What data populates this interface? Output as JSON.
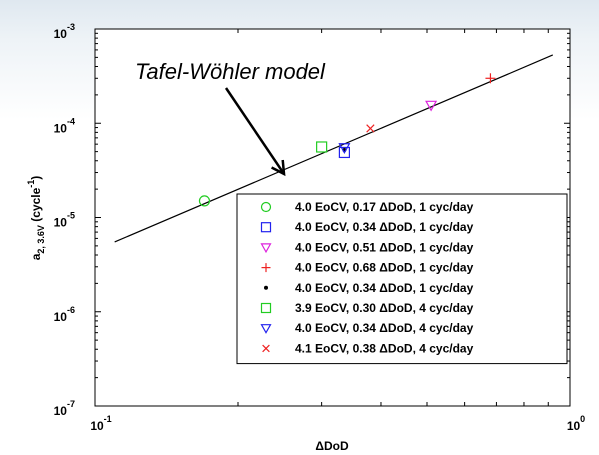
{
  "chart_data": {
    "type": "scatter",
    "x_scale": "log",
    "y_scale": "log",
    "xlim": [
      0.1,
      1
    ],
    "ylim": [
      1e-07,
      0.001
    ],
    "x_ticks": [
      {
        "value": 0.1,
        "mantissa": "10",
        "exp": "-1"
      },
      {
        "value": 1,
        "mantissa": "10",
        "exp": "0"
      }
    ],
    "y_ticks": [
      {
        "value": 0.001,
        "mantissa": "10",
        "exp": "-3"
      },
      {
        "value": 0.0001,
        "mantissa": "10",
        "exp": "-4"
      },
      {
        "value": 1e-05,
        "mantissa": "10",
        "exp": "-5"
      },
      {
        "value": 1e-06,
        "mantissa": "10",
        "exp": "-6"
      },
      {
        "value": 1e-07,
        "mantissa": "10",
        "exp": "-7"
      }
    ],
    "xlabel": "ΔDoD",
    "ylabel": {
      "main": "a",
      "sub": "2, 3.6V",
      "unit_open": "(cycle",
      "unit_sup": "-1",
      "unit_close": ")"
    },
    "grid": false,
    "legend_position": "bottom-right",
    "annotation": {
      "text": "Tafel-Wöhler model",
      "points_to_x": 0.25,
      "points_to_y": 2.9e-05
    },
    "fit_line": {
      "x": [
        0.11,
        0.92
      ],
      "y": [
        5.5e-06,
        0.00053
      ],
      "color": "#000000"
    },
    "series": [
      {
        "name": "4.0 EoCV, 0.17 ΔDoD, 1 cyc/day",
        "marker": "circle",
        "color": "#22cc22",
        "x": [
          0.17
        ],
        "y": [
          1.5e-05
        ]
      },
      {
        "name": "4.0 EoCV, 0.34 ΔDoD, 1 cyc/day",
        "marker": "square",
        "color": "#2222ee",
        "x": [
          0.335
        ],
        "y": [
          4.9e-05
        ]
      },
      {
        "name": "4.0 EoCV, 0.51 ΔDoD, 1 cyc/day",
        "marker": "triangle-down",
        "color": "#dd22dd",
        "x": [
          0.51
        ],
        "y": [
          0.000155
        ]
      },
      {
        "name": "4.0 EoCV, 0.68 ΔDoD, 1 cyc/day",
        "marker": "plus",
        "color": "#ee2222",
        "x": [
          0.68
        ],
        "y": [
          0.0003
        ]
      },
      {
        "name": "4.0 EoCV, 0.34 ΔDoD, 1 cyc/day",
        "marker": "dot",
        "color": "#000000",
        "x": [
          0.335
        ],
        "y": [
          5.2e-05
        ]
      },
      {
        "name": "3.9 EoCV, 0.30 ΔDoD, 4 cyc/day",
        "marker": "square",
        "color": "#22cc22",
        "x": [
          0.3
        ],
        "y": [
          5.6e-05
        ]
      },
      {
        "name": "4.0 EoCV, 0.34 ΔDoD, 4 cyc/day",
        "marker": "triangle-down",
        "color": "#2222ee",
        "x": [
          0.335
        ],
        "y": [
          5.5e-05
        ]
      },
      {
        "name": "4.1 EoCV, 0.38 ΔDoD, 4 cyc/day",
        "marker": "x",
        "color": "#ee2222",
        "x": [
          0.38
        ],
        "y": [
          8.8e-05
        ]
      }
    ]
  }
}
